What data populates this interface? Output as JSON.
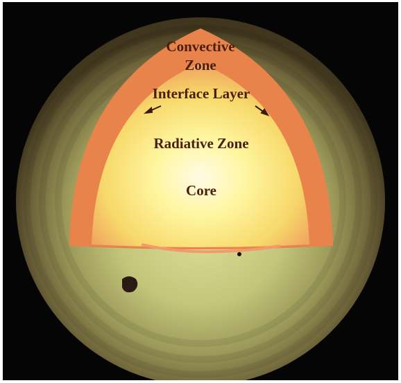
{
  "labels": {
    "convective": "Convective Zone",
    "interface": "Interface Layer",
    "radiative": "Radiative Zone",
    "core": "Core"
  }
}
